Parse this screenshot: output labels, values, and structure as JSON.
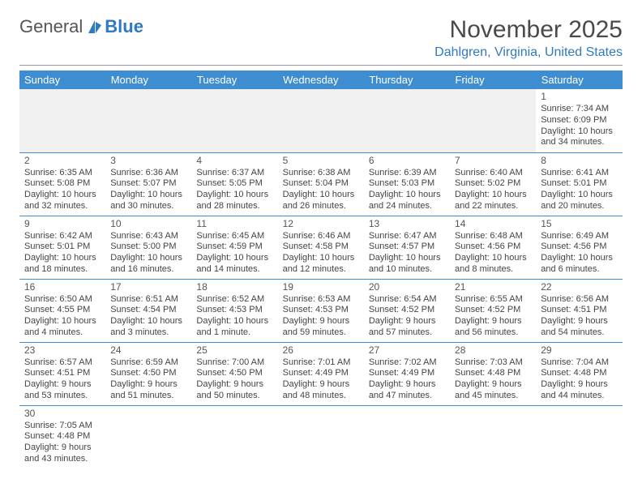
{
  "brand": {
    "part1": "General",
    "part2": "Blue"
  },
  "header": {
    "month_title": "November 2025",
    "location": "Dahlgren, Virginia, United States"
  },
  "colors": {
    "header_bg": "#3f8dd1",
    "header_text": "#ffffff",
    "brand_accent": "#2f7ac0",
    "rule": "#999999",
    "row_border": "#3f8dd1",
    "empty_bg": "#f0f0f0"
  },
  "day_headers": [
    "Sunday",
    "Monday",
    "Tuesday",
    "Wednesday",
    "Thursday",
    "Friday",
    "Saturday"
  ],
  "weeks": [
    [
      null,
      null,
      null,
      null,
      null,
      null,
      {
        "n": "1",
        "sr": "Sunrise: 7:34 AM",
        "ss": "Sunset: 6:09 PM",
        "d1": "Daylight: 10 hours",
        "d2": "and 34 minutes."
      }
    ],
    [
      {
        "n": "2",
        "sr": "Sunrise: 6:35 AM",
        "ss": "Sunset: 5:08 PM",
        "d1": "Daylight: 10 hours",
        "d2": "and 32 minutes."
      },
      {
        "n": "3",
        "sr": "Sunrise: 6:36 AM",
        "ss": "Sunset: 5:07 PM",
        "d1": "Daylight: 10 hours",
        "d2": "and 30 minutes."
      },
      {
        "n": "4",
        "sr": "Sunrise: 6:37 AM",
        "ss": "Sunset: 5:05 PM",
        "d1": "Daylight: 10 hours",
        "d2": "and 28 minutes."
      },
      {
        "n": "5",
        "sr": "Sunrise: 6:38 AM",
        "ss": "Sunset: 5:04 PM",
        "d1": "Daylight: 10 hours",
        "d2": "and 26 minutes."
      },
      {
        "n": "6",
        "sr": "Sunrise: 6:39 AM",
        "ss": "Sunset: 5:03 PM",
        "d1": "Daylight: 10 hours",
        "d2": "and 24 minutes."
      },
      {
        "n": "7",
        "sr": "Sunrise: 6:40 AM",
        "ss": "Sunset: 5:02 PM",
        "d1": "Daylight: 10 hours",
        "d2": "and 22 minutes."
      },
      {
        "n": "8",
        "sr": "Sunrise: 6:41 AM",
        "ss": "Sunset: 5:01 PM",
        "d1": "Daylight: 10 hours",
        "d2": "and 20 minutes."
      }
    ],
    [
      {
        "n": "9",
        "sr": "Sunrise: 6:42 AM",
        "ss": "Sunset: 5:01 PM",
        "d1": "Daylight: 10 hours",
        "d2": "and 18 minutes."
      },
      {
        "n": "10",
        "sr": "Sunrise: 6:43 AM",
        "ss": "Sunset: 5:00 PM",
        "d1": "Daylight: 10 hours",
        "d2": "and 16 minutes."
      },
      {
        "n": "11",
        "sr": "Sunrise: 6:45 AM",
        "ss": "Sunset: 4:59 PM",
        "d1": "Daylight: 10 hours",
        "d2": "and 14 minutes."
      },
      {
        "n": "12",
        "sr": "Sunrise: 6:46 AM",
        "ss": "Sunset: 4:58 PM",
        "d1": "Daylight: 10 hours",
        "d2": "and 12 minutes."
      },
      {
        "n": "13",
        "sr": "Sunrise: 6:47 AM",
        "ss": "Sunset: 4:57 PM",
        "d1": "Daylight: 10 hours",
        "d2": "and 10 minutes."
      },
      {
        "n": "14",
        "sr": "Sunrise: 6:48 AM",
        "ss": "Sunset: 4:56 PM",
        "d1": "Daylight: 10 hours",
        "d2": "and 8 minutes."
      },
      {
        "n": "15",
        "sr": "Sunrise: 6:49 AM",
        "ss": "Sunset: 4:56 PM",
        "d1": "Daylight: 10 hours",
        "d2": "and 6 minutes."
      }
    ],
    [
      {
        "n": "16",
        "sr": "Sunrise: 6:50 AM",
        "ss": "Sunset: 4:55 PM",
        "d1": "Daylight: 10 hours",
        "d2": "and 4 minutes."
      },
      {
        "n": "17",
        "sr": "Sunrise: 6:51 AM",
        "ss": "Sunset: 4:54 PM",
        "d1": "Daylight: 10 hours",
        "d2": "and 3 minutes."
      },
      {
        "n": "18",
        "sr": "Sunrise: 6:52 AM",
        "ss": "Sunset: 4:53 PM",
        "d1": "Daylight: 10 hours",
        "d2": "and 1 minute."
      },
      {
        "n": "19",
        "sr": "Sunrise: 6:53 AM",
        "ss": "Sunset: 4:53 PM",
        "d1": "Daylight: 9 hours",
        "d2": "and 59 minutes."
      },
      {
        "n": "20",
        "sr": "Sunrise: 6:54 AM",
        "ss": "Sunset: 4:52 PM",
        "d1": "Daylight: 9 hours",
        "d2": "and 57 minutes."
      },
      {
        "n": "21",
        "sr": "Sunrise: 6:55 AM",
        "ss": "Sunset: 4:52 PM",
        "d1": "Daylight: 9 hours",
        "d2": "and 56 minutes."
      },
      {
        "n": "22",
        "sr": "Sunrise: 6:56 AM",
        "ss": "Sunset: 4:51 PM",
        "d1": "Daylight: 9 hours",
        "d2": "and 54 minutes."
      }
    ],
    [
      {
        "n": "23",
        "sr": "Sunrise: 6:57 AM",
        "ss": "Sunset: 4:51 PM",
        "d1": "Daylight: 9 hours",
        "d2": "and 53 minutes."
      },
      {
        "n": "24",
        "sr": "Sunrise: 6:59 AM",
        "ss": "Sunset: 4:50 PM",
        "d1": "Daylight: 9 hours",
        "d2": "and 51 minutes."
      },
      {
        "n": "25",
        "sr": "Sunrise: 7:00 AM",
        "ss": "Sunset: 4:50 PM",
        "d1": "Daylight: 9 hours",
        "d2": "and 50 minutes."
      },
      {
        "n": "26",
        "sr": "Sunrise: 7:01 AM",
        "ss": "Sunset: 4:49 PM",
        "d1": "Daylight: 9 hours",
        "d2": "and 48 minutes."
      },
      {
        "n": "27",
        "sr": "Sunrise: 7:02 AM",
        "ss": "Sunset: 4:49 PM",
        "d1": "Daylight: 9 hours",
        "d2": "and 47 minutes."
      },
      {
        "n": "28",
        "sr": "Sunrise: 7:03 AM",
        "ss": "Sunset: 4:48 PM",
        "d1": "Daylight: 9 hours",
        "d2": "and 45 minutes."
      },
      {
        "n": "29",
        "sr": "Sunrise: 7:04 AM",
        "ss": "Sunset: 4:48 PM",
        "d1": "Daylight: 9 hours",
        "d2": "and 44 minutes."
      }
    ],
    [
      {
        "n": "30",
        "sr": "Sunrise: 7:05 AM",
        "ss": "Sunset: 4:48 PM",
        "d1": "Daylight: 9 hours",
        "d2": "and 43 minutes."
      },
      null,
      null,
      null,
      null,
      null,
      null
    ]
  ]
}
